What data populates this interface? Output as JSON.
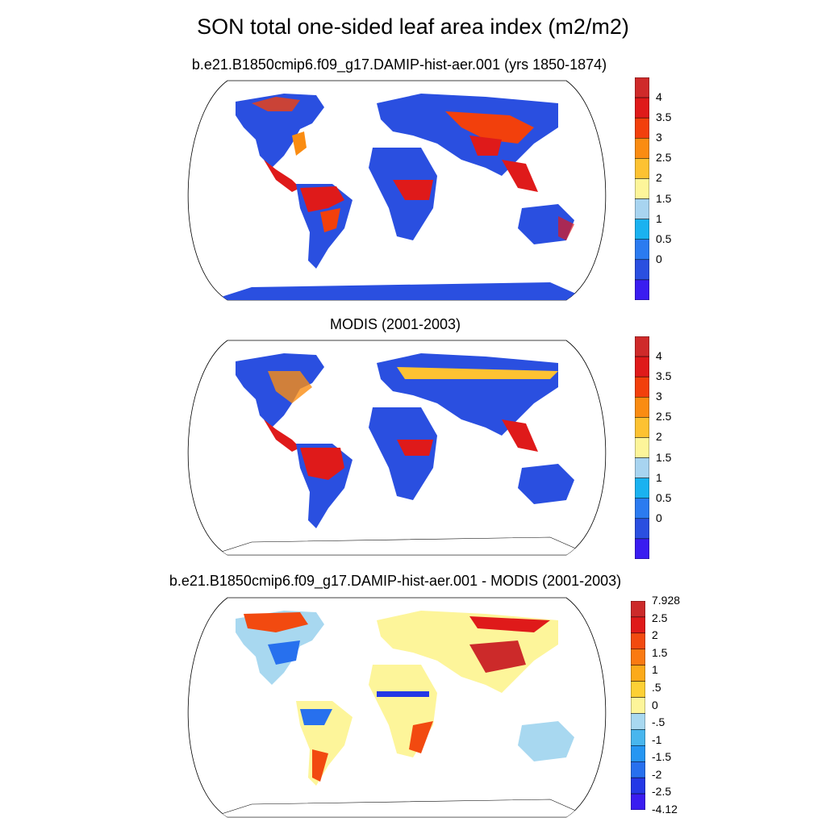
{
  "title": "SON total one-sided leaf area index (m2/m2)",
  "panels": [
    {
      "id": "model",
      "title": "b.e21.B1850cmip6.f09_g17.DAMIP-hist-aer.001 (yrs 1850-1874)",
      "colors": [
        "#3a1cf0",
        "#2a4fe0",
        "#2b7bf0",
        "#1ab2f0",
        "#a8d4f0",
        "#fdf59a",
        "#fdc232",
        "#fa8c12",
        "#f2400c",
        "#df1a1a",
        "#cf2a2a"
      ],
      "labels": [
        "0",
        "0.5",
        "1",
        "1.5",
        "2",
        "2.5",
        "3",
        "3.5",
        "4"
      ]
    },
    {
      "id": "obs",
      "title": "MODIS (2001-2003)",
      "colors": [
        "#3a1cf0",
        "#2a4fe0",
        "#2b7bf0",
        "#1ab2f0",
        "#a8d4f0",
        "#fdf59a",
        "#fdc232",
        "#fa8c12",
        "#f2400c",
        "#df1a1a",
        "#cf2a2a"
      ],
      "labels": [
        "0",
        "0.5",
        "1",
        "1.5",
        "2",
        "2.5",
        "3",
        "3.5",
        "4"
      ]
    },
    {
      "id": "diff",
      "title": "b.e21.B1850cmip6.f09_g17.DAMIP-hist-aer.001 - MODIS (2001-2003)",
      "colors": [
        "#3a1cf0",
        "#2438e6",
        "#2770ee",
        "#2596f2",
        "#48b6ee",
        "#a8d8f0",
        "#fdf59a",
        "#fdd035",
        "#fcaa1a",
        "#fa7a12",
        "#f24a10",
        "#df1a1a",
        "#cc2a2a"
      ],
      "labels": [
        "-4.12",
        "-2.5",
        "-2",
        "-1.5",
        "-1",
        "-.5",
        "0",
        ".5",
        "1",
        "1.5",
        "2",
        "2.5",
        "7.928"
      ]
    }
  ]
}
